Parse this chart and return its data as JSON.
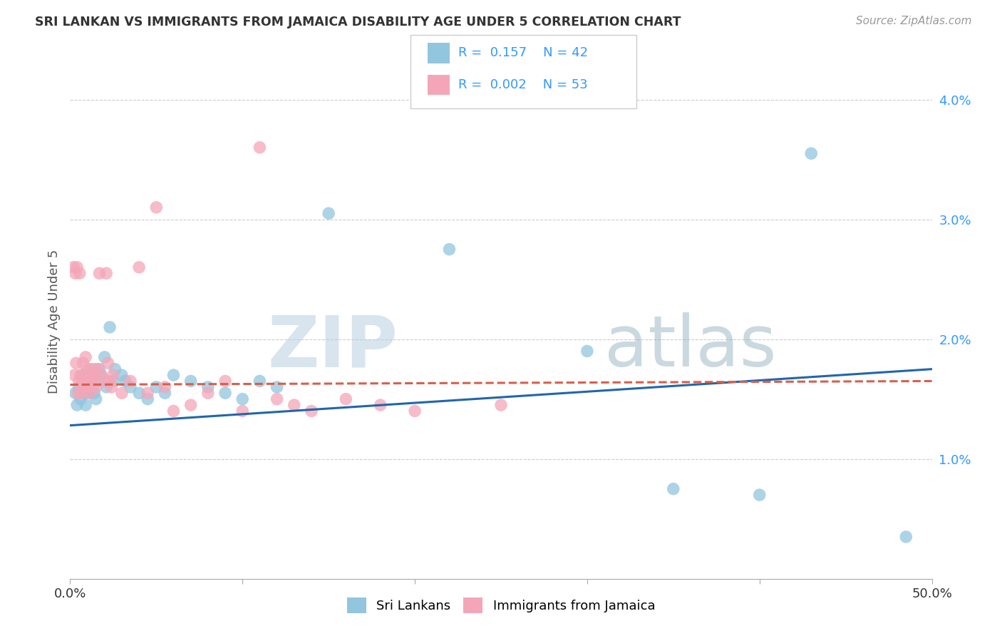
{
  "title": "SRI LANKAN VS IMMIGRANTS FROM JAMAICA DISABILITY AGE UNDER 5 CORRELATION CHART",
  "source": "Source: ZipAtlas.com",
  "ylabel": "Disability Age Under 5",
  "legend_sri_r": "0.157",
  "legend_sri_n": "42",
  "legend_jam_r": "0.002",
  "legend_jam_n": "53",
  "blue_color": "#92c5de",
  "pink_color": "#f4a6b8",
  "blue_line_color": "#2166ac",
  "pink_line_color": "#d6604d",
  "legend_r_color": "#3399ff",
  "background_color": "#ffffff",
  "grid_color": "#cccccc",
  "sri_lankans": [
    [
      0.3,
      1.55
    ],
    [
      0.4,
      1.45
    ],
    [
      0.5,
      1.6
    ],
    [
      0.6,
      1.5
    ],
    [
      0.7,
      1.7
    ],
    [
      0.8,
      1.55
    ],
    [
      0.9,
      1.45
    ],
    [
      1.0,
      1.65
    ],
    [
      1.1,
      1.55
    ],
    [
      1.2,
      1.75
    ],
    [
      1.3,
      1.6
    ],
    [
      1.4,
      1.55
    ],
    [
      1.5,
      1.5
    ],
    [
      1.6,
      1.65
    ],
    [
      1.7,
      1.75
    ],
    [
      1.8,
      1.7
    ],
    [
      2.0,
      1.85
    ],
    [
      2.1,
      1.6
    ],
    [
      2.3,
      2.1
    ],
    [
      2.5,
      1.65
    ],
    [
      2.6,
      1.75
    ],
    [
      3.0,
      1.7
    ],
    [
      3.2,
      1.65
    ],
    [
      3.5,
      1.6
    ],
    [
      4.0,
      1.55
    ],
    [
      4.5,
      1.5
    ],
    [
      5.0,
      1.6
    ],
    [
      5.5,
      1.55
    ],
    [
      6.0,
      1.7
    ],
    [
      7.0,
      1.65
    ],
    [
      8.0,
      1.6
    ],
    [
      9.0,
      1.55
    ],
    [
      10.0,
      1.5
    ],
    [
      11.0,
      1.65
    ],
    [
      12.0,
      1.6
    ],
    [
      15.0,
      3.05
    ],
    [
      22.0,
      2.75
    ],
    [
      30.0,
      1.9
    ],
    [
      35.0,
      0.75
    ],
    [
      40.0,
      0.7
    ],
    [
      43.0,
      3.55
    ],
    [
      48.5,
      0.35
    ]
  ],
  "immigrants_jamaica": [
    [
      0.2,
      2.6
    ],
    [
      0.25,
      1.7
    ],
    [
      0.3,
      2.55
    ],
    [
      0.35,
      1.8
    ],
    [
      0.4,
      2.6
    ],
    [
      0.45,
      1.55
    ],
    [
      0.5,
      1.65
    ],
    [
      0.55,
      2.55
    ],
    [
      0.6,
      1.7
    ],
    [
      0.65,
      1.55
    ],
    [
      0.7,
      1.65
    ],
    [
      0.75,
      1.8
    ],
    [
      0.8,
      1.6
    ],
    [
      0.85,
      1.7
    ],
    [
      0.9,
      1.85
    ],
    [
      0.95,
      1.65
    ],
    [
      1.0,
      1.75
    ],
    [
      1.05,
      1.6
    ],
    [
      1.1,
      1.7
    ],
    [
      1.15,
      1.55
    ],
    [
      1.2,
      1.65
    ],
    [
      1.3,
      1.6
    ],
    [
      1.35,
      1.7
    ],
    [
      1.4,
      1.75
    ],
    [
      1.5,
      1.6
    ],
    [
      1.6,
      1.75
    ],
    [
      1.7,
      2.55
    ],
    [
      1.8,
      1.7
    ],
    [
      2.0,
      1.65
    ],
    [
      2.1,
      2.55
    ],
    [
      2.2,
      1.8
    ],
    [
      2.3,
      1.65
    ],
    [
      2.4,
      1.6
    ],
    [
      2.5,
      1.7
    ],
    [
      3.0,
      1.55
    ],
    [
      3.5,
      1.65
    ],
    [
      4.0,
      2.6
    ],
    [
      4.5,
      1.55
    ],
    [
      5.0,
      3.1
    ],
    [
      5.5,
      1.6
    ],
    [
      6.0,
      1.4
    ],
    [
      7.0,
      1.45
    ],
    [
      8.0,
      1.55
    ],
    [
      9.0,
      1.65
    ],
    [
      10.0,
      1.4
    ],
    [
      11.0,
      3.6
    ],
    [
      12.0,
      1.5
    ],
    [
      13.0,
      1.45
    ],
    [
      14.0,
      1.4
    ],
    [
      16.0,
      1.5
    ],
    [
      18.0,
      1.45
    ],
    [
      20.0,
      1.4
    ],
    [
      25.0,
      1.45
    ]
  ],
  "xlim": [
    0,
    50
  ],
  "ylim": [
    0,
    4.3
  ]
}
